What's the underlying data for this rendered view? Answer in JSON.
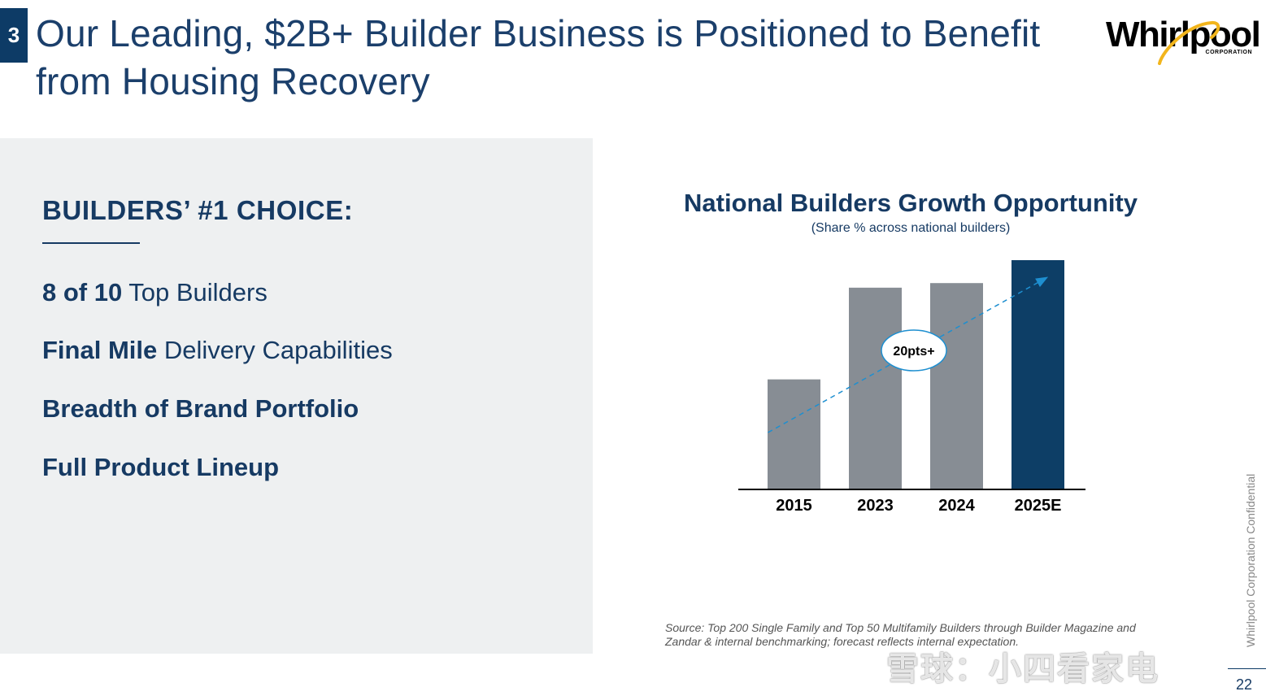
{
  "section_number": "3",
  "title_line1": "Our Leading, $2B+ Builder Business is Positioned to Benefit",
  "title_line2": "from Housing Recovery",
  "logo": {
    "name": "Whirlpool",
    "sub": "CORPORATION",
    "swoosh_color": "#f2b51c"
  },
  "left_panel": {
    "heading": "BUILDERS’ #1 CHOICE:",
    "items": [
      {
        "bold": "8 of 10",
        "rest": " Top Builders"
      },
      {
        "bold": "Final Mile",
        "rest": " Delivery Capabilities"
      },
      {
        "bold": "Breadth of Brand Portfolio",
        "rest": ""
      },
      {
        "bold": "Full Product Lineup",
        "rest": ""
      }
    ]
  },
  "chart_data": {
    "type": "bar",
    "title": "National Builders Growth Opportunity",
    "subtitle": "(Share % across national builders)",
    "categories": [
      "2015",
      "2023",
      "2024",
      "2025E"
    ],
    "values": [
      48,
      88,
      90,
      100
    ],
    "ylim": [
      0,
      100
    ],
    "grid": false,
    "bar_colors": [
      "#878d94",
      "#878d94",
      "#878d94",
      "#0d3e66"
    ],
    "annotation": "20pts+",
    "trend_color": "#1e8fd0"
  },
  "source_note": "Source: Top 200 Single Family and Top 50 Multifamily Builders through Builder Magazine and Zandar & internal benchmarking; forecast reflects internal expectation.",
  "confidential": "Whirlpool Corporation Confidential",
  "page_number": "22",
  "watermark": "雪球：小四看家电"
}
